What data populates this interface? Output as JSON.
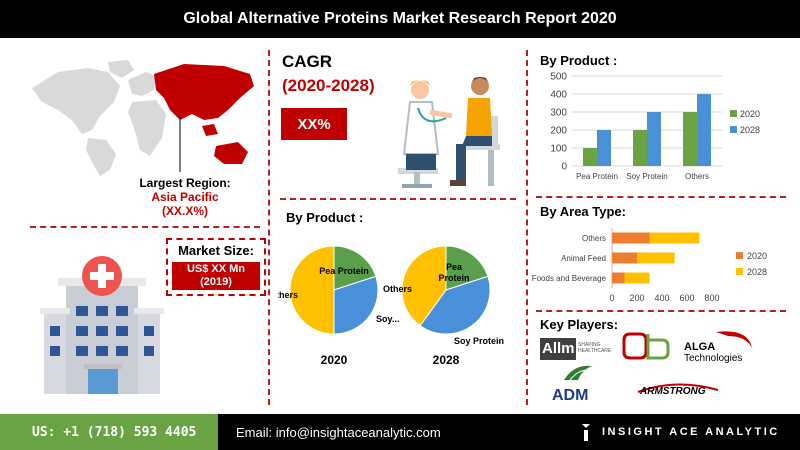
{
  "title": "Global Alternative Proteins Market Research Report 2020",
  "region": {
    "label": "Largest Region:",
    "name": "Asia Pacific",
    "value": "(XX.X%)"
  },
  "market_size": {
    "label": "Market Size:",
    "value_line1": "US$ XX Mn",
    "value_line2": "(2019)"
  },
  "cagr": {
    "label": "CAGR",
    "period": "(2020-2028)",
    "value": "XX%"
  },
  "headings": {
    "pie": "By Product :",
    "bar": "By Product :",
    "area": "By Area Type:",
    "players": "Key Players:"
  },
  "key_players": [
    "Allm",
    "ALGA Technologies",
    "ADM",
    "Armstrong"
  ],
  "logo_texts": {
    "allm_tag": "SHAPING HEALTHCARE",
    "alga_1": "ALGA",
    "alga_2": "Technologies",
    "adm": "ADM",
    "armstrong": "ARMSTRONG"
  },
  "footer": {
    "phone": "US: +1 (718) 593 4405",
    "email": "Email: info@insightaceanalytic.com",
    "brand": "INSIGHT ACE ANALYTIC"
  },
  "colors": {
    "red": "#c00000",
    "c2020_bar": "#6aa343",
    "c2028_bar": "#4a90d9",
    "c2020_area": "#ed7d31",
    "c2028_area": "#ffc000",
    "pie_pea": "#5aa04a",
    "pie_soy": "#4a90d9",
    "pie_others": "#ffc000",
    "footer_green": "#6aa343"
  },
  "chart_data": [
    {
      "type": "bar",
      "title": "By Product :",
      "categories": [
        "Pea Protein",
        "Soy Protein",
        "Others"
      ],
      "series": [
        {
          "name": "2020",
          "values": [
            100,
            200,
            300
          ]
        },
        {
          "name": "2028",
          "values": [
            200,
            300,
            400
          ]
        }
      ],
      "ylim": [
        0,
        500
      ],
      "yticks": [
        0,
        100,
        200,
        300,
        400,
        500
      ],
      "legend": "right"
    },
    {
      "type": "bar",
      "orientation": "horizontal",
      "stacked": true,
      "title": "By Area Type:",
      "categories": [
        "Others",
        "Animal Feed",
        "Foods and Beverage"
      ],
      "series": [
        {
          "name": "2020",
          "values": [
            300,
            200,
            100
          ]
        },
        {
          "name": "2028",
          "values": [
            400,
            300,
            200
          ]
        }
      ],
      "xlim": [
        0,
        800
      ],
      "xticks": [
        0,
        200,
        400,
        600,
        800
      ],
      "legend": "right"
    },
    {
      "type": "pie",
      "title": "2020",
      "labels": [
        "Pea Protein",
        "Soy...",
        "Others"
      ],
      "categories": [
        "Pea Protein",
        "Soy Protein",
        "Others"
      ],
      "values": [
        20,
        30,
        50
      ]
    },
    {
      "type": "pie",
      "title": "2028",
      "labels": [
        "Pea Protein",
        "Soy Protein",
        "Others"
      ],
      "categories": [
        "Pea Protein",
        "Soy Protein",
        "Others"
      ],
      "values": [
        20,
        40,
        40
      ]
    }
  ]
}
